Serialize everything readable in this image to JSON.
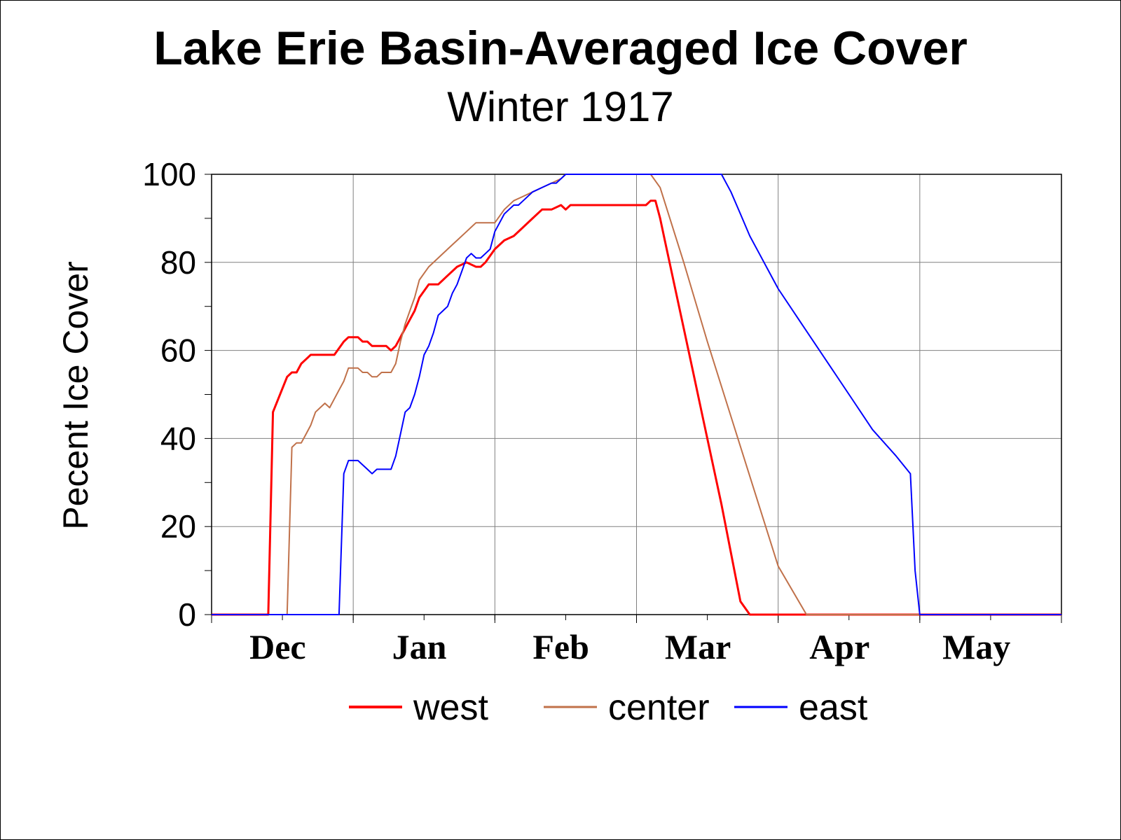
{
  "chart_data": {
    "type": "line",
    "title": "Lake Erie Basin-Averaged Ice Cover",
    "subtitle": "Winter 1917",
    "xlabel": "",
    "ylabel": "Pecent Ice Cover",
    "ylim": [
      0,
      100
    ],
    "yticks": [
      0,
      20,
      40,
      60,
      80,
      100
    ],
    "xlim": [
      0,
      180
    ],
    "month_ticks": [
      0,
      30,
      60,
      90,
      120,
      150,
      180
    ],
    "month_labels": [
      {
        "label": "Dec",
        "x": 14
      },
      {
        "label": "Jan",
        "x": 44
      },
      {
        "label": "Feb",
        "x": 74
      },
      {
        "label": "Mar",
        "x": 103
      },
      {
        "label": "Apr",
        "x": 133
      },
      {
        "label": "May",
        "x": 162
      }
    ],
    "grid": true,
    "legend_position": "bottom",
    "series": [
      {
        "name": "west",
        "color": "#ff0000",
        "width": 3,
        "x": [
          0,
          12,
          13,
          16,
          17,
          18,
          19,
          20,
          21,
          22,
          24,
          26,
          28,
          29,
          30,
          31,
          32,
          33,
          34,
          35,
          36,
          37,
          38,
          39,
          40,
          41,
          42,
          43,
          44,
          46,
          48,
          50,
          52,
          54,
          56,
          57,
          58,
          60,
          62,
          64,
          66,
          68,
          70,
          72,
          74,
          75,
          76,
          77,
          78,
          80,
          85,
          90,
          92,
          93,
          94,
          95,
          96,
          98,
          100,
          102,
          104,
          106,
          108,
          110,
          112,
          114,
          116,
          117,
          118,
          120,
          150,
          180
        ],
        "y": [
          0,
          0,
          46,
          54,
          55,
          55,
          57,
          58,
          59,
          59,
          59,
          59,
          62,
          63,
          63,
          63,
          62,
          62,
          61,
          61,
          61,
          61,
          60,
          61,
          63,
          65,
          67,
          69,
          72,
          75,
          75,
          77,
          79,
          80,
          79,
          79,
          80,
          83,
          85,
          86,
          88,
          90,
          92,
          92,
          93,
          92,
          93,
          93,
          93,
          93,
          93,
          93,
          93,
          94,
          94,
          90,
          85,
          75,
          65,
          55,
          45,
          35,
          25,
          14,
          3,
          0,
          0,
          0,
          0,
          0,
          0,
          0
        ]
      },
      {
        "name": "center",
        "color": "#c0714a",
        "width": 2,
        "x": [
          0,
          16,
          17,
          18,
          19,
          20,
          21,
          22,
          23,
          24,
          25,
          26,
          27,
          28,
          29,
          30,
          31,
          32,
          33,
          34,
          35,
          36,
          37,
          38,
          39,
          40,
          41,
          42,
          43,
          44,
          46,
          48,
          50,
          52,
          54,
          55,
          56,
          58,
          60,
          62,
          64,
          66,
          68,
          70,
          72,
          74,
          75,
          80,
          85,
          90,
          93,
          95,
          100,
          105,
          110,
          115,
          120,
          126,
          127,
          130,
          150,
          180
        ],
        "y": [
          0,
          0,
          38,
          39,
          39,
          41,
          43,
          46,
          47,
          48,
          47,
          49,
          51,
          53,
          56,
          56,
          56,
          55,
          55,
          54,
          54,
          55,
          55,
          55,
          57,
          62,
          66,
          69,
          72,
          76,
          79,
          81,
          83,
          85,
          87,
          88,
          89,
          89,
          89,
          92,
          94,
          95,
          96,
          97,
          98,
          99,
          100,
          100,
          100,
          100,
          100,
          97,
          80,
          62,
          45,
          28,
          11,
          0,
          0,
          0,
          0,
          0
        ]
      },
      {
        "name": "east",
        "color": "#0000ff",
        "width": 2,
        "x": [
          0,
          27,
          28,
          29,
          30,
          31,
          32,
          33,
          34,
          35,
          36,
          37,
          38,
          39,
          40,
          41,
          42,
          43,
          44,
          45,
          46,
          47,
          48,
          49,
          50,
          51,
          52,
          53,
          54,
          55,
          56,
          57,
          58,
          59,
          60,
          61,
          62,
          63,
          64,
          65,
          66,
          68,
          70,
          72,
          73,
          74,
          75,
          80,
          90,
          100,
          108,
          110,
          112,
          114,
          116,
          118,
          120,
          125,
          130,
          135,
          140,
          145,
          148,
          149,
          150,
          155,
          180
        ],
        "y": [
          0,
          0,
          32,
          35,
          35,
          35,
          34,
          33,
          32,
          33,
          33,
          33,
          33,
          36,
          41,
          46,
          47,
          50,
          54,
          59,
          61,
          64,
          68,
          69,
          70,
          73,
          75,
          78,
          81,
          82,
          81,
          81,
          82,
          83,
          87,
          89,
          91,
          92,
          93,
          93,
          94,
          96,
          97,
          98,
          98,
          99,
          100,
          100,
          100,
          100,
          100,
          96,
          91,
          86,
          82,
          78,
          74,
          66,
          58,
          50,
          42,
          36,
          32,
          10,
          0,
          0,
          0
        ]
      }
    ]
  }
}
